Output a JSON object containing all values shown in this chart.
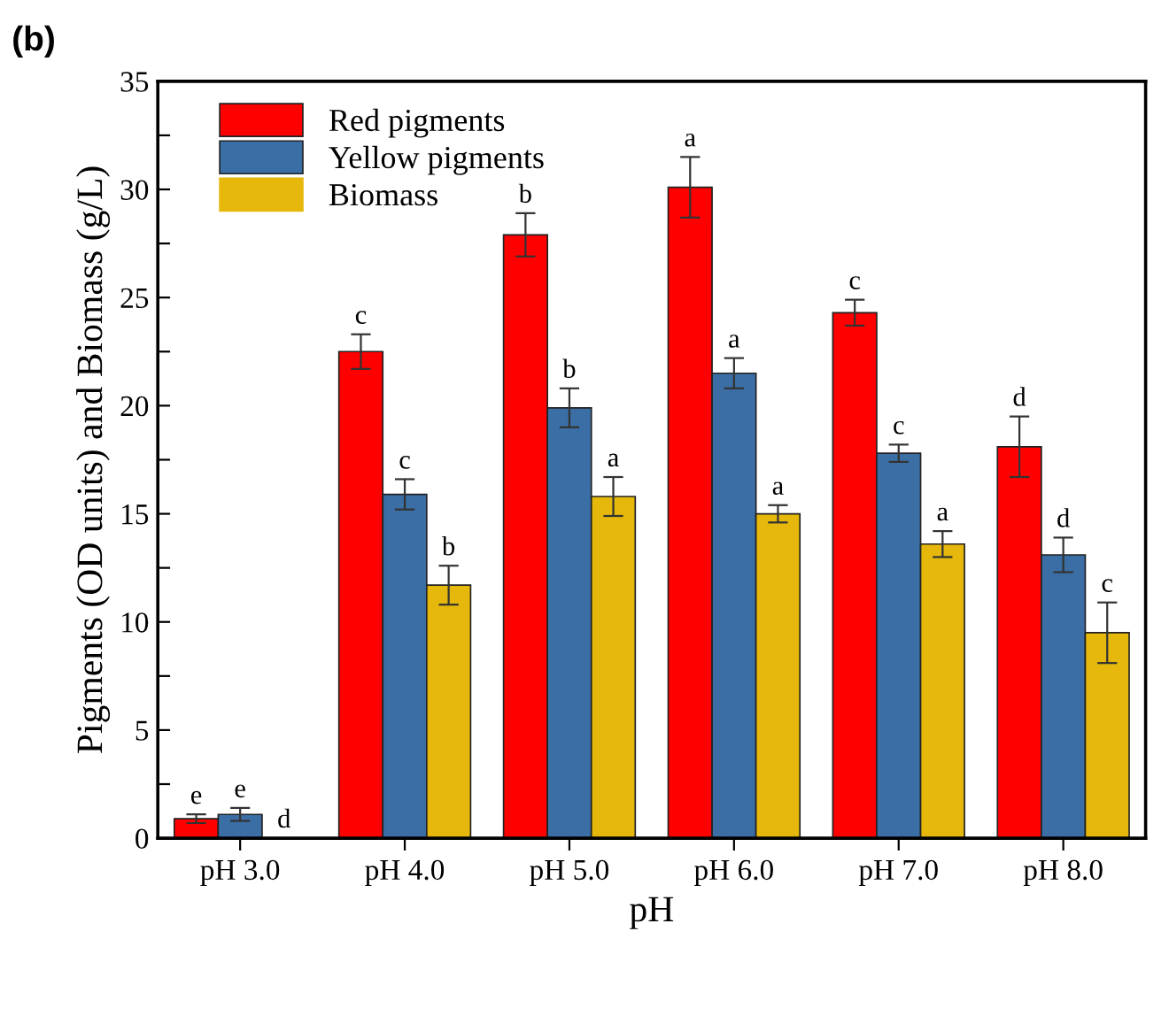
{
  "chart_data": {
    "type": "bar",
    "title": "(b)",
    "xlabel": "pH",
    "ylabel": "Pigments (OD units) and Biomass (g/L)",
    "categories": [
      "pH 3.0",
      "pH 4.0",
      "pH 5.0",
      "pH 6.0",
      "pH 7.0",
      "pH 8.0"
    ],
    "series": [
      {
        "name": "Red pigments",
        "color": "#ff0000",
        "values": [
          0.9,
          22.5,
          27.9,
          30.1,
          24.3,
          18.1
        ],
        "errors": [
          0.2,
          0.8,
          1.0,
          1.4,
          0.6,
          1.4
        ]
      },
      {
        "name": "Yellow pigments",
        "color": "#3a6ea5",
        "values": [
          1.1,
          15.9,
          19.9,
          21.5,
          17.8,
          13.1
        ],
        "errors": [
          0.3,
          0.7,
          0.9,
          0.7,
          0.4,
          0.8
        ]
      },
      {
        "name": "Biomass",
        "color": "#e6b80b",
        "values": [
          0,
          11.7,
          15.8,
          15.0,
          13.6,
          9.5
        ],
        "errors": [
          null,
          0.9,
          0.9,
          0.4,
          0.6,
          1.4
        ]
      }
    ],
    "annotations": [
      "e",
      "e",
      "d",
      "c",
      "c",
      "b",
      "b",
      "b",
      "a",
      "a",
      "a",
      "a",
      "c",
      "c",
      "a",
      "d",
      "d",
      "c"
    ],
    "ylim": [
      0,
      35
    ],
    "yticks": [
      0,
      {
        "value": 2.5,
        "label": null
      },
      5,
      {
        "value": 7.5,
        "label": null
      },
      10,
      {
        "value": 12.5,
        "label": null
      },
      15,
      {
        "value": 17.5,
        "label": null
      },
      20,
      {
        "value": 22.5,
        "label": null
      },
      25,
      {
        "value": 27.5,
        "label": null
      },
      30,
      {
        "value": 32.5,
        "label": null
      },
      35
    ],
    "legend": "top left",
    "grid": false
  }
}
